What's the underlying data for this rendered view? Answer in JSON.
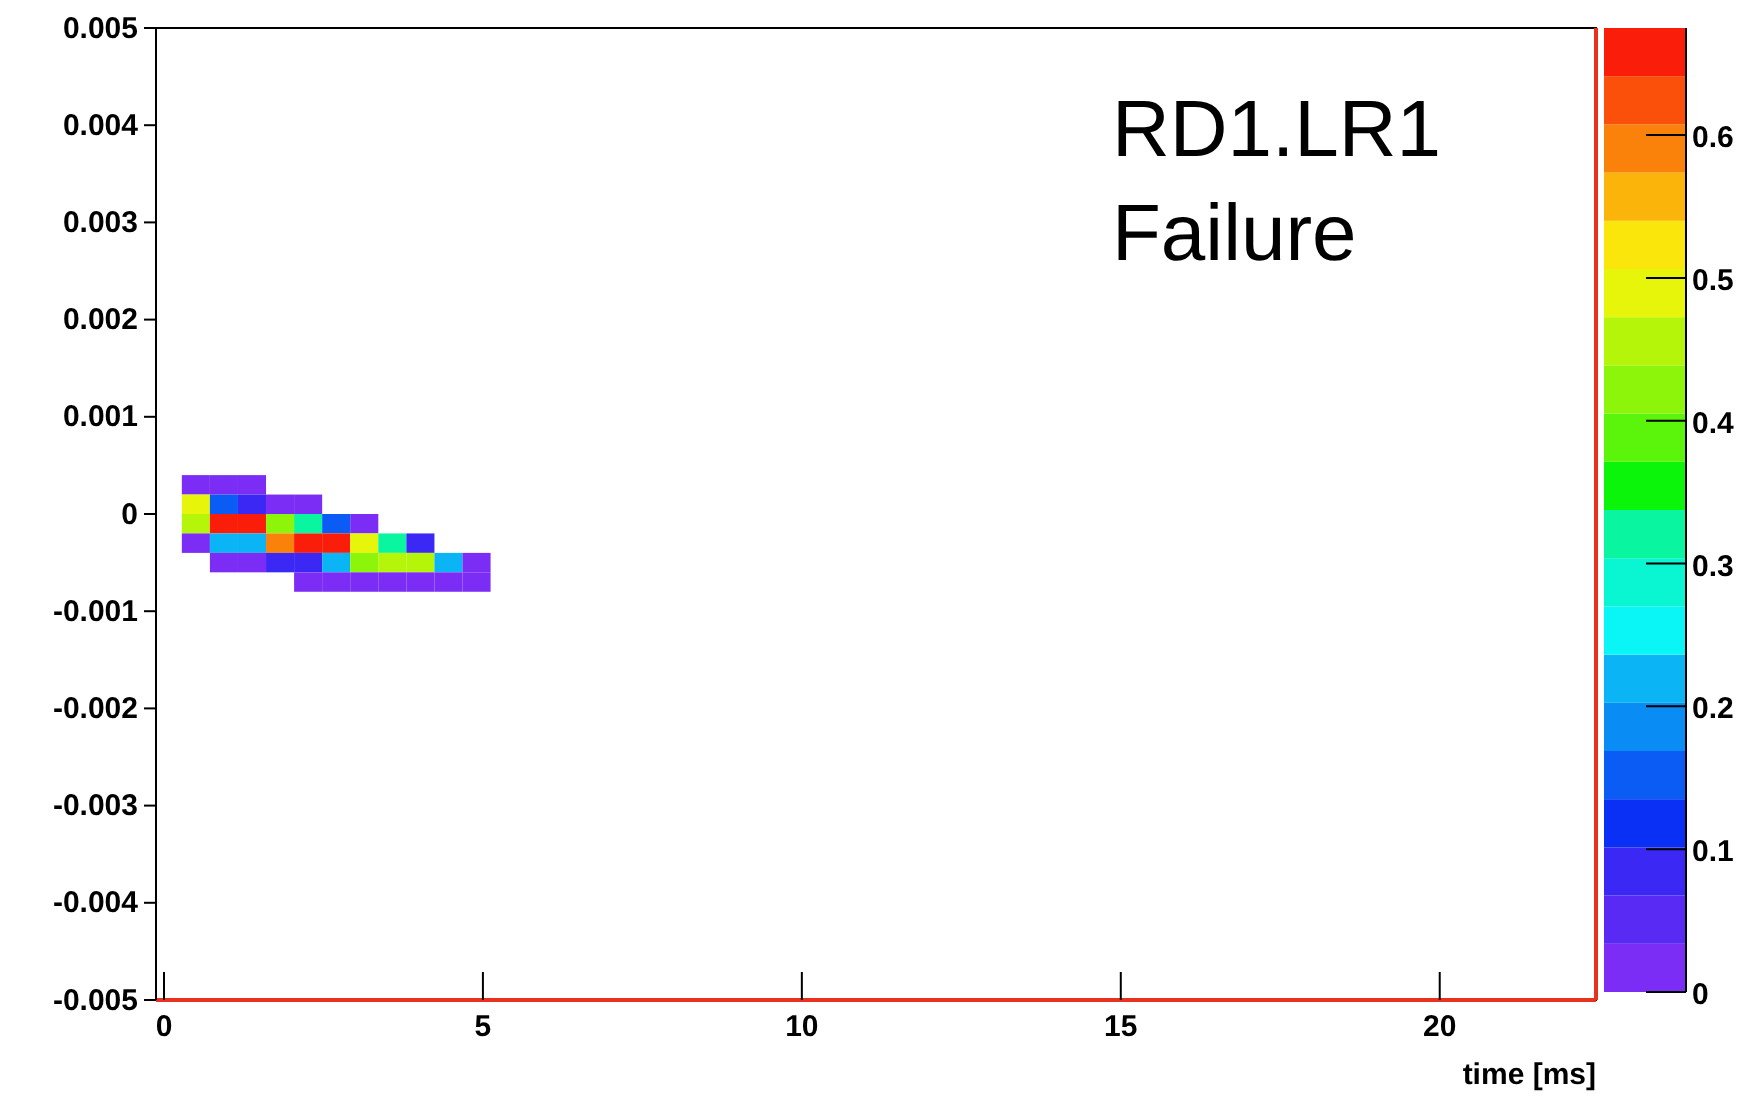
{
  "chart_data": {
    "type": "scatter",
    "marker": "square",
    "xlabel": "time [ms]",
    "x": [
      0.5,
      0.94,
      1.38,
      0.5,
      0.94,
      1.38,
      1.82,
      2.26,
      0.5,
      0.94,
      1.38,
      1.82,
      2.26,
      2.7,
      3.14,
      0.5,
      0.94,
      1.38,
      1.82,
      2.26,
      2.7,
      3.14,
      3.58,
      4.02,
      0.94,
      1.38,
      1.82,
      2.26,
      2.7,
      3.14,
      3.58,
      4.02,
      4.46,
      4.9,
      2.26,
      2.7,
      3.14,
      3.58,
      4.02,
      4.46,
      4.9
    ],
    "values": [
      0.0003,
      0.0003,
      0.0003,
      0.0001,
      0.0001,
      0.0001,
      0.0001,
      0.0001,
      -0.0001,
      -0.0001,
      -0.0001,
      -0.0001,
      -0.0001,
      -0.0001,
      -0.0001,
      -0.0003,
      -0.0003,
      -0.0003,
      -0.0003,
      -0.0003,
      -0.0003,
      -0.0003,
      -0.0003,
      -0.0003,
      -0.0005,
      -0.0005,
      -0.0005,
      -0.0005,
      -0.0005,
      -0.0005,
      -0.0005,
      -0.0005,
      -0.0005,
      -0.0005,
      -0.0007,
      -0.0007,
      -0.0007,
      -0.0007,
      -0.0007,
      -0.0007,
      -0.0007
    ],
    "cvalues": [
      0.02,
      0.02,
      0.02,
      0.48,
      0.15,
      0.1,
      0.02,
      0.02,
      0.45,
      0.67,
      0.67,
      0.43,
      0.32,
      0.15,
      0.03,
      0.03,
      0.22,
      0.22,
      0.58,
      0.65,
      0.67,
      0.5,
      0.33,
      0.07,
      0.02,
      0.02,
      0.07,
      0.1,
      0.22,
      0.42,
      0.45,
      0.45,
      0.22,
      0.02,
      0.02,
      0.02,
      0.02,
      0.02,
      0.02,
      0.02,
      0.02
    ],
    "xlim": [
      -0.125,
      22.45
    ],
    "xticks": [
      0,
      5,
      10,
      15,
      20
    ],
    "ylim": [
      -0.005,
      0.005
    ],
    "yticks": [
      -0.005,
      -0.004,
      -0.003,
      -0.002,
      -0.001,
      0,
      0.001,
      0.002,
      0.003,
      0.004,
      0.005
    ],
    "clim": [
      0,
      0.675
    ],
    "cticks": [
      0,
      0.1,
      0.2,
      0.3,
      0.4,
      0.5,
      0.6
    ],
    "annotations": [
      "RD1.LR1\nFailure"
    ]
  }
}
